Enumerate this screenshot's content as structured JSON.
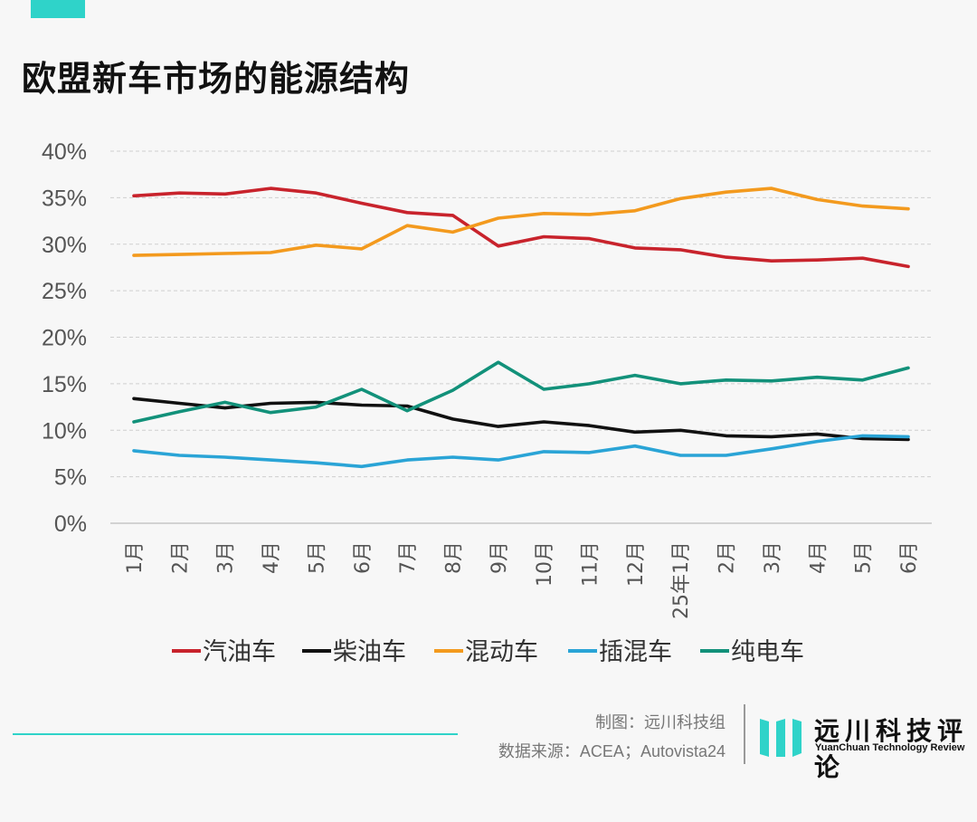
{
  "title": "欧盟新车市场的能源结构",
  "colors": {
    "accent": "#2fd3c9",
    "gasoline": "#c8232c",
    "diesel": "#111111",
    "hybrid": "#f39a1e",
    "phev": "#2aa4d6",
    "bev": "#12917a"
  },
  "credits": {
    "maker": "制图：远川科技组",
    "source": "数据来源：ACEA；Autovista24"
  },
  "logo": {
    "cn": "远川科技评论",
    "en": "YuanChuan Technology Review"
  },
  "chart_data": {
    "type": "line",
    "title": "欧盟新车市场的能源结构",
    "xlabel": "",
    "ylabel": "",
    "ylim": [
      0,
      40
    ],
    "y_ticks": [
      "0%",
      "5%",
      "10%",
      "15%",
      "20%",
      "25%",
      "30%",
      "35%",
      "40%"
    ],
    "grid": "horizontal dashed",
    "legend": "bottom",
    "categories": [
      "1月",
      "2月",
      "3月",
      "4月",
      "5月",
      "6月",
      "7月",
      "8月",
      "9月",
      "10月",
      "11月",
      "12月",
      "25年1月",
      "2月",
      "3月",
      "4月",
      "5月",
      "6月"
    ],
    "series": [
      {
        "name": "汽油车",
        "color": "#c8232c",
        "values": [
          35.2,
          35.5,
          35.4,
          36.0,
          35.5,
          34.4,
          33.4,
          33.1,
          29.8,
          30.8,
          30.6,
          29.6,
          29.4,
          28.6,
          28.2,
          28.3,
          28.5,
          27.6
        ]
      },
      {
        "name": "柴油车",
        "color": "#111111",
        "values": [
          13.4,
          12.9,
          12.4,
          12.9,
          13.0,
          12.7,
          12.6,
          11.2,
          10.4,
          10.9,
          10.5,
          9.8,
          10.0,
          9.4,
          9.3,
          9.6,
          9.1,
          9.0
        ]
      },
      {
        "name": "混动车",
        "color": "#f39a1e",
        "values": [
          28.8,
          28.9,
          29.0,
          29.1,
          29.9,
          29.5,
          32.0,
          31.3,
          32.8,
          33.3,
          33.2,
          33.6,
          34.9,
          35.6,
          36.0,
          34.8,
          34.1,
          33.8
        ]
      },
      {
        "name": "插混车",
        "color": "#2aa4d6",
        "values": [
          7.8,
          7.3,
          7.1,
          6.8,
          6.5,
          6.1,
          6.8,
          7.1,
          6.8,
          7.7,
          7.6,
          8.3,
          7.3,
          7.3,
          8.0,
          8.8,
          9.4,
          9.3
        ]
      },
      {
        "name": "纯电车",
        "color": "#12917a",
        "values": [
          10.9,
          12.0,
          13.0,
          11.9,
          12.5,
          14.4,
          12.1,
          14.3,
          17.3,
          14.4,
          15.0,
          15.9,
          15.0,
          15.4,
          15.3,
          15.7,
          15.4,
          16.7
        ]
      }
    ]
  }
}
